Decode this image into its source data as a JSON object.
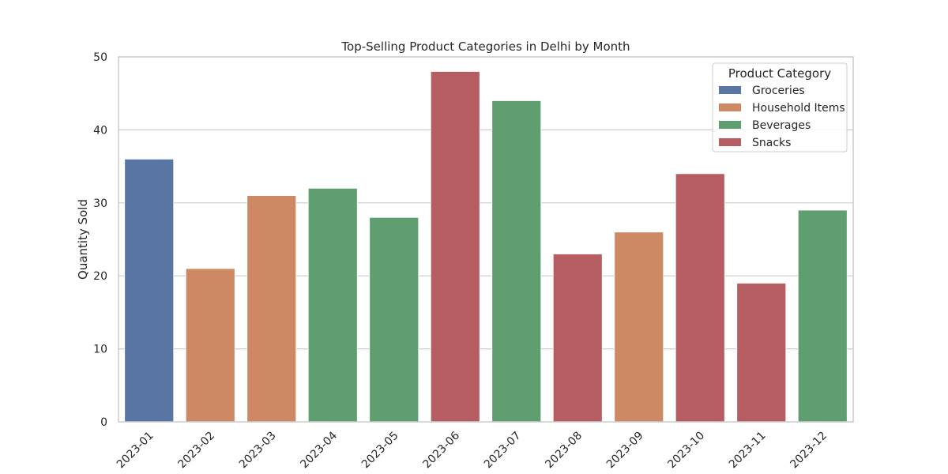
{
  "chart_data": {
    "type": "bar",
    "title": "Top-Selling Product Categories in Delhi by Month",
    "xlabel": "",
    "ylabel": "Quantity Sold",
    "ylim": [
      0,
      50
    ],
    "yticks": [
      0,
      10,
      20,
      30,
      40,
      50
    ],
    "grid": true,
    "legend_placement": "top-right",
    "legend_title": "Product Category",
    "categories": [
      "2023-01",
      "2023-02",
      "2023-03",
      "2023-04",
      "2023-05",
      "2023-06",
      "2023-07",
      "2023-08",
      "2023-09",
      "2023-10",
      "2023-11",
      "2023-12"
    ],
    "values": [
      36,
      21,
      31,
      32,
      28,
      48,
      44,
      23,
      26,
      34,
      19,
      29
    ],
    "bar_category": [
      "Groceries",
      "Household Items",
      "Household Items",
      "Beverages",
      "Beverages",
      "Snacks",
      "Beverages",
      "Snacks",
      "Household Items",
      "Snacks",
      "Snacks",
      "Beverages"
    ],
    "legend": [
      {
        "name": "Groceries",
        "color": "#5975a4"
      },
      {
        "name": "Household Items",
        "color": "#cc8963"
      },
      {
        "name": "Beverages",
        "color": "#5f9e6e"
      },
      {
        "name": "Snacks",
        "color": "#b55d60"
      }
    ]
  }
}
